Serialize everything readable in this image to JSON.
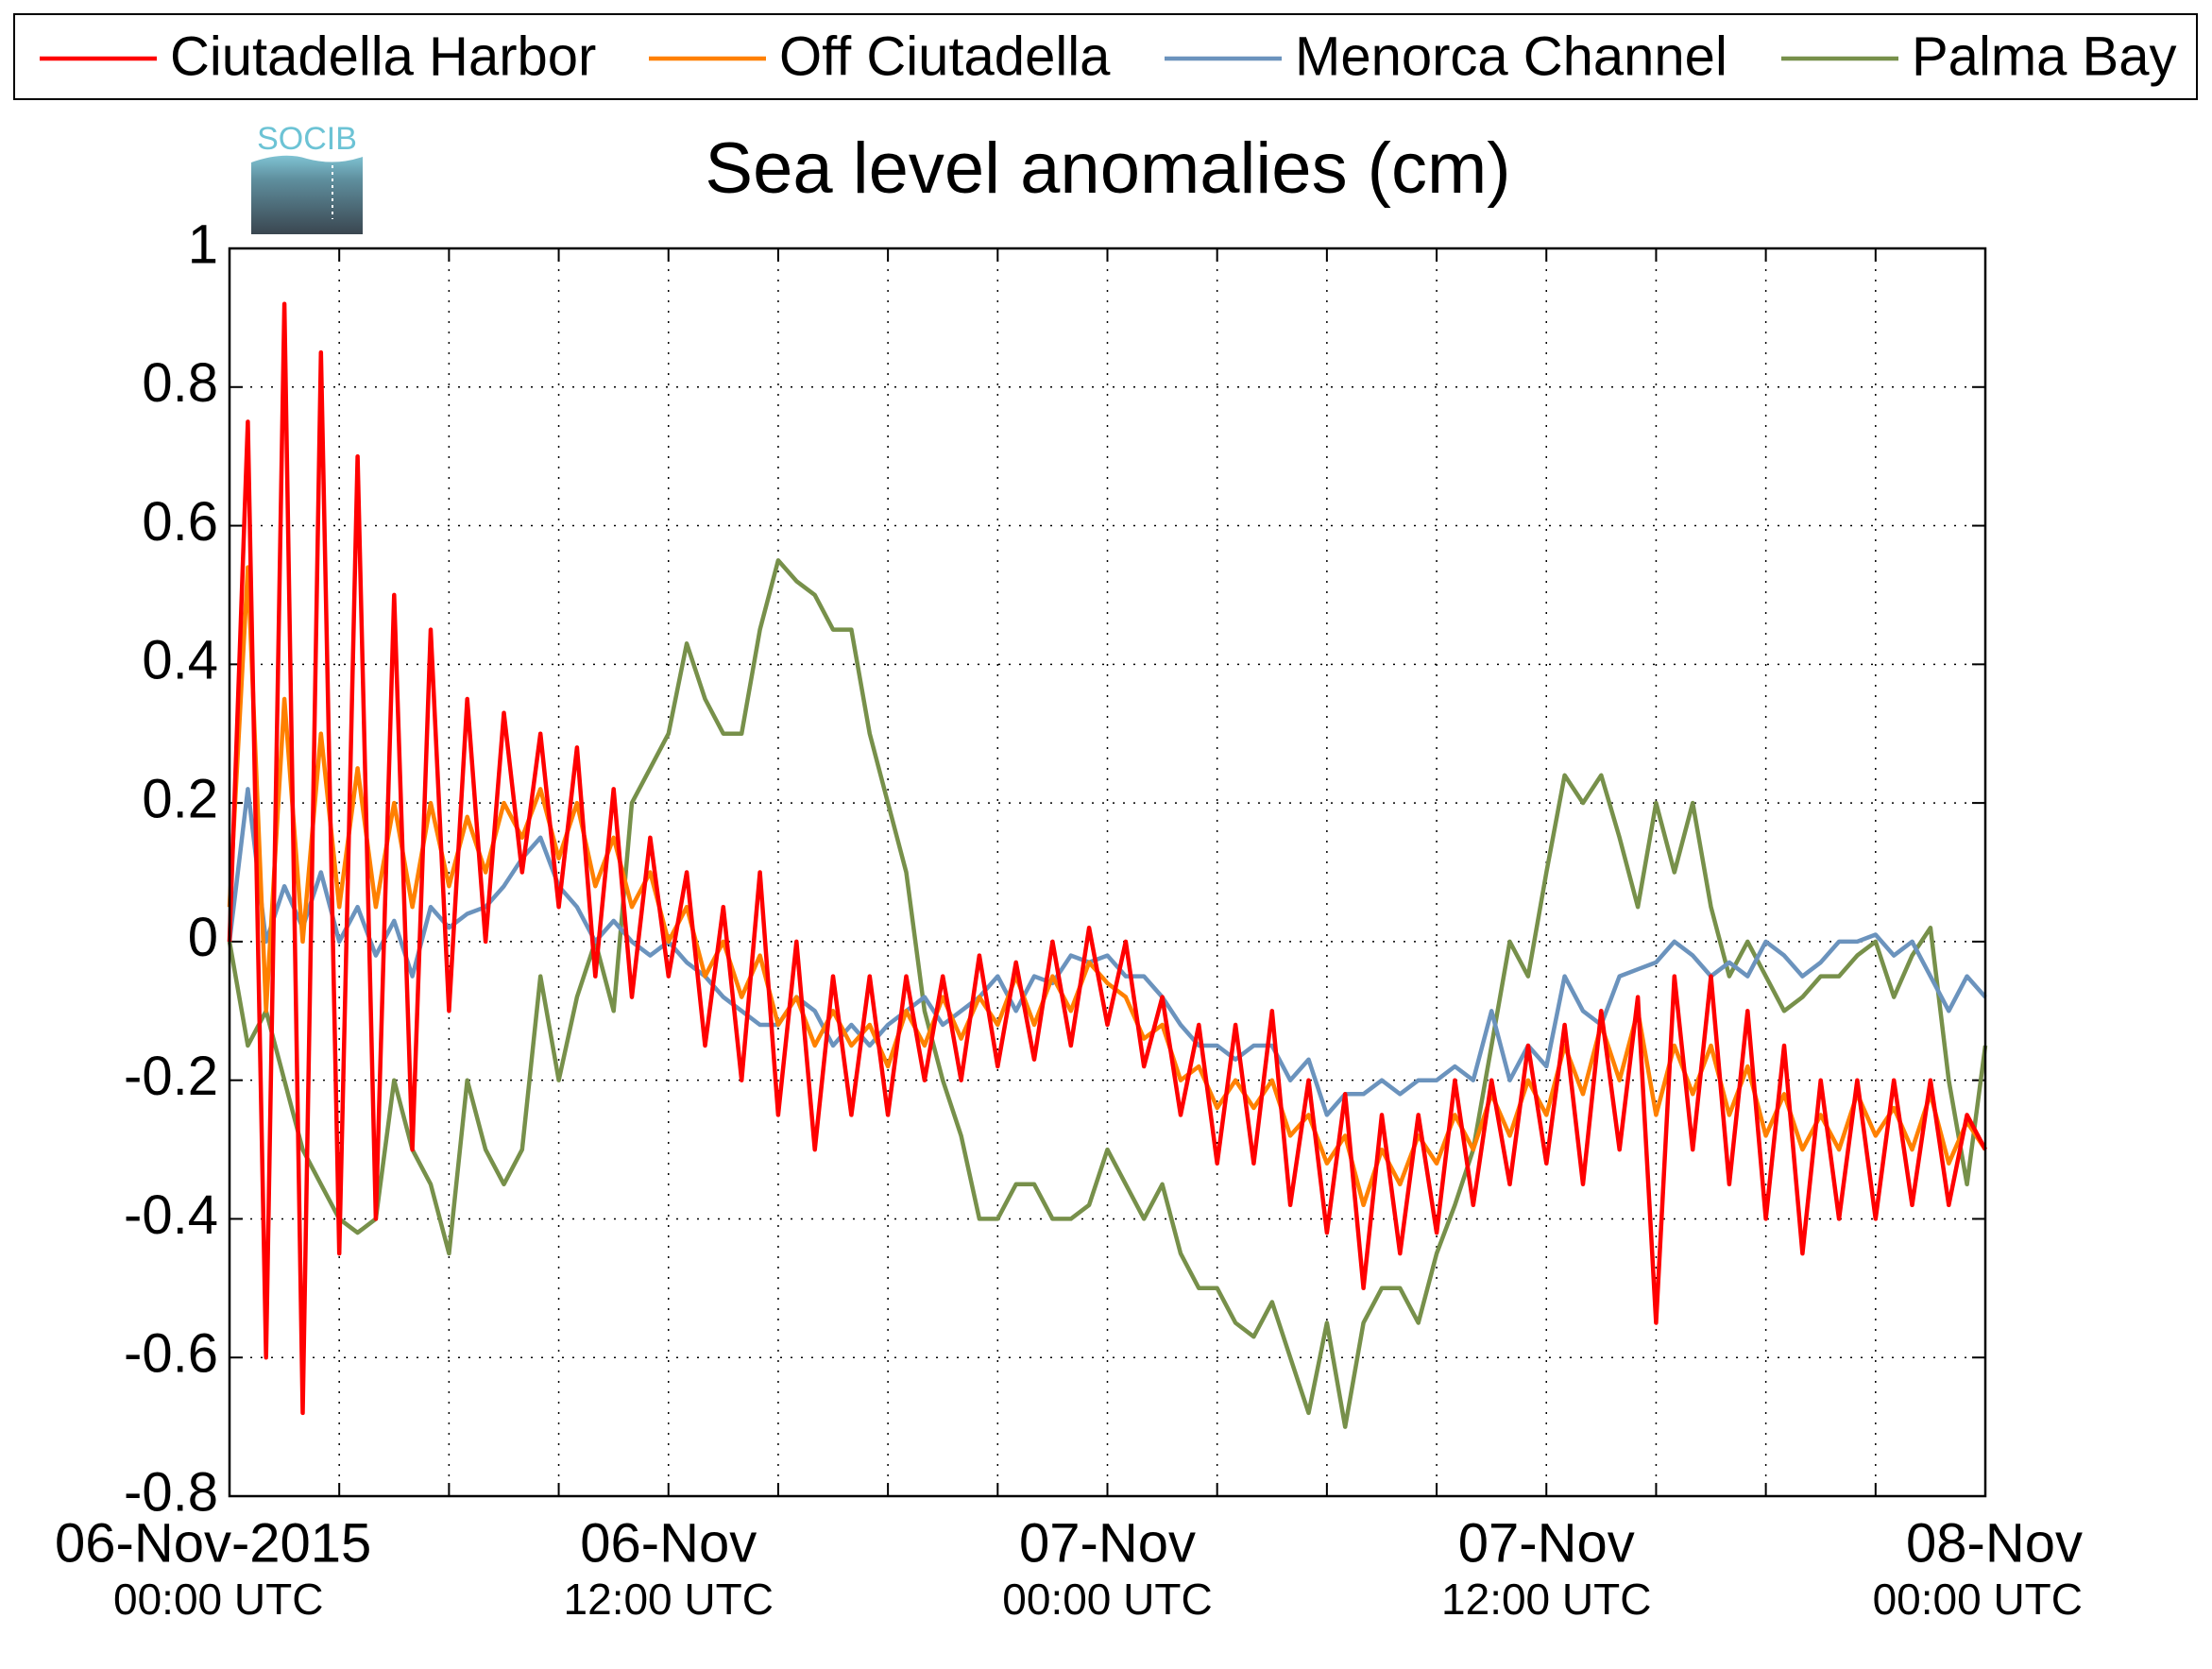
{
  "chart_data": {
    "type": "line",
    "title": "Sea level anomalies (cm)",
    "logo": "SOCIB",
    "x": [
      "2015-11-06T00:00",
      "2015-11-06T00:30",
      "2015-11-06T01:00",
      "2015-11-06T01:30",
      "2015-11-06T02:00",
      "2015-11-06T02:30",
      "2015-11-06T03:00",
      "2015-11-06T03:30",
      "2015-11-06T04:00",
      "2015-11-06T04:30",
      "2015-11-06T05:00",
      "2015-11-06T05:30",
      "2015-11-06T06:00",
      "2015-11-06T06:30",
      "2015-11-06T07:00",
      "2015-11-06T07:30",
      "2015-11-06T08:00",
      "2015-11-06T08:30",
      "2015-11-06T09:00",
      "2015-11-06T09:30",
      "2015-11-06T10:00",
      "2015-11-06T10:30",
      "2015-11-06T11:00",
      "2015-11-06T11:30",
      "2015-11-06T12:00",
      "2015-11-06T12:30",
      "2015-11-06T13:00",
      "2015-11-06T13:30",
      "2015-11-06T14:00",
      "2015-11-06T14:30",
      "2015-11-06T15:00",
      "2015-11-06T15:30",
      "2015-11-06T16:00",
      "2015-11-06T16:30",
      "2015-11-06T17:00",
      "2015-11-06T17:30",
      "2015-11-06T18:00",
      "2015-11-06T18:30",
      "2015-11-06T19:00",
      "2015-11-06T19:30",
      "2015-11-06T20:00",
      "2015-11-06T20:30",
      "2015-11-06T21:00",
      "2015-11-06T21:30",
      "2015-11-06T22:00",
      "2015-11-06T22:30",
      "2015-11-06T23:00",
      "2015-11-06T23:30",
      "2015-11-07T00:00",
      "2015-11-07T00:30",
      "2015-11-07T01:00",
      "2015-11-07T01:30",
      "2015-11-07T02:00",
      "2015-11-07T02:30",
      "2015-11-07T03:00",
      "2015-11-07T03:30",
      "2015-11-07T04:00",
      "2015-11-07T04:30",
      "2015-11-07T05:00",
      "2015-11-07T05:30",
      "2015-11-07T06:00",
      "2015-11-07T06:30",
      "2015-11-07T07:00",
      "2015-11-07T07:30",
      "2015-11-07T08:00",
      "2015-11-07T08:30",
      "2015-11-07T09:00",
      "2015-11-07T09:30",
      "2015-11-07T10:00",
      "2015-11-07T10:30",
      "2015-11-07T11:00",
      "2015-11-07T11:30",
      "2015-11-07T12:00",
      "2015-11-07T12:30",
      "2015-11-07T13:00",
      "2015-11-07T13:30",
      "2015-11-07T14:00",
      "2015-11-07T14:30",
      "2015-11-07T15:00",
      "2015-11-07T15:30",
      "2015-11-07T16:00",
      "2015-11-07T16:30",
      "2015-11-07T17:00",
      "2015-11-07T17:30",
      "2015-11-07T18:00",
      "2015-11-07T18:30",
      "2015-11-07T19:00",
      "2015-11-07T19:30",
      "2015-11-07T20:00",
      "2015-11-07T20:30",
      "2015-11-07T21:00",
      "2015-11-07T21:30",
      "2015-11-07T22:00",
      "2015-11-07T22:30",
      "2015-11-07T23:00",
      "2015-11-07T23:30",
      "2015-11-08T00:00"
    ],
    "series": [
      {
        "name": "Ciutadella Harbor",
        "color": "#ff0000",
        "values": [
          0.0,
          0.75,
          -0.6,
          0.92,
          -0.68,
          0.85,
          -0.45,
          0.7,
          -0.4,
          0.5,
          -0.3,
          0.45,
          -0.1,
          0.35,
          0.0,
          0.33,
          0.1,
          0.3,
          0.05,
          0.28,
          -0.05,
          0.22,
          -0.08,
          0.15,
          -0.05,
          0.1,
          -0.15,
          0.05,
          -0.2,
          0.1,
          -0.25,
          0.0,
          -0.3,
          -0.05,
          -0.25,
          -0.05,
          -0.25,
          -0.05,
          -0.2,
          -0.05,
          -0.2,
          -0.02,
          -0.18,
          -0.03,
          -0.17,
          0.0,
          -0.15,
          0.02,
          -0.12,
          0.0,
          -0.18,
          -0.08,
          -0.25,
          -0.12,
          -0.32,
          -0.12,
          -0.32,
          -0.1,
          -0.38,
          -0.2,
          -0.42,
          -0.22,
          -0.5,
          -0.25,
          -0.45,
          -0.25,
          -0.42,
          -0.2,
          -0.38,
          -0.2,
          -0.35,
          -0.15,
          -0.32,
          -0.12,
          -0.35,
          -0.1,
          -0.3,
          -0.08,
          -0.55,
          -0.05,
          -0.3,
          -0.05,
          -0.35,
          -0.1,
          -0.4,
          -0.15,
          -0.45,
          -0.2,
          -0.4,
          -0.2,
          -0.4,
          -0.2,
          -0.38,
          -0.2,
          -0.38,
          -0.25,
          -0.3
        ]
      },
      {
        "name": "Off Ciutadella",
        "color": "#ff8000",
        "values": [
          0.05,
          0.54,
          -0.1,
          0.35,
          0.0,
          0.3,
          0.05,
          0.25,
          0.05,
          0.2,
          0.05,
          0.2,
          0.08,
          0.18,
          0.1,
          0.2,
          0.15,
          0.22,
          0.12,
          0.2,
          0.08,
          0.15,
          0.05,
          0.1,
          0.0,
          0.05,
          -0.05,
          0.0,
          -0.08,
          -0.02,
          -0.12,
          -0.08,
          -0.15,
          -0.1,
          -0.15,
          -0.12,
          -0.18,
          -0.1,
          -0.15,
          -0.08,
          -0.14,
          -0.08,
          -0.12,
          -0.05,
          -0.12,
          -0.05,
          -0.1,
          -0.03,
          -0.06,
          -0.08,
          -0.14,
          -0.12,
          -0.2,
          -0.18,
          -0.24,
          -0.2,
          -0.24,
          -0.2,
          -0.28,
          -0.25,
          -0.32,
          -0.28,
          -0.38,
          -0.3,
          -0.35,
          -0.28,
          -0.32,
          -0.25,
          -0.3,
          -0.22,
          -0.28,
          -0.2,
          -0.25,
          -0.15,
          -0.22,
          -0.12,
          -0.2,
          -0.1,
          -0.25,
          -0.15,
          -0.22,
          -0.15,
          -0.25,
          -0.18,
          -0.28,
          -0.22,
          -0.3,
          -0.25,
          -0.3,
          -0.22,
          -0.28,
          -0.24,
          -0.3,
          -0.22,
          -0.32,
          -0.26,
          -0.3
        ]
      },
      {
        "name": "Menorca Channel",
        "color": "#6b93bd",
        "values": [
          0.0,
          0.22,
          0.0,
          0.08,
          0.02,
          0.1,
          0.0,
          0.05,
          -0.02,
          0.03,
          -0.05,
          0.05,
          0.02,
          0.04,
          0.05,
          0.08,
          0.12,
          0.15,
          0.08,
          0.05,
          0.0,
          0.03,
          0.0,
          -0.02,
          0.0,
          -0.03,
          -0.05,
          -0.08,
          -0.1,
          -0.12,
          -0.12,
          -0.08,
          -0.1,
          -0.15,
          -0.12,
          -0.15,
          -0.12,
          -0.1,
          -0.08,
          -0.12,
          -0.1,
          -0.08,
          -0.05,
          -0.1,
          -0.05,
          -0.06,
          -0.02,
          -0.03,
          -0.02,
          -0.05,
          -0.05,
          -0.08,
          -0.12,
          -0.15,
          -0.15,
          -0.17,
          -0.15,
          -0.15,
          -0.2,
          -0.17,
          -0.25,
          -0.22,
          -0.22,
          -0.2,
          -0.22,
          -0.2,
          -0.2,
          -0.18,
          -0.2,
          -0.1,
          -0.2,
          -0.15,
          -0.18,
          -0.05,
          -0.1,
          -0.12,
          -0.05,
          -0.04,
          -0.03,
          0.0,
          -0.02,
          -0.05,
          -0.03,
          -0.05,
          0.0,
          -0.02,
          -0.05,
          -0.03,
          0.0,
          0.0,
          0.01,
          -0.02,
          0.0,
          -0.05,
          -0.1,
          -0.05,
          -0.08
        ]
      },
      {
        "name": "Palma Bay",
        "color": "#77904a",
        "values": [
          0.0,
          -0.15,
          -0.1,
          -0.2,
          -0.3,
          -0.35,
          -0.4,
          -0.42,
          -0.4,
          -0.2,
          -0.3,
          -0.35,
          -0.45,
          -0.2,
          -0.3,
          -0.35,
          -0.3,
          -0.05,
          -0.2,
          -0.08,
          0.0,
          -0.1,
          0.2,
          0.25,
          0.3,
          0.43,
          0.35,
          0.3,
          0.3,
          0.45,
          0.55,
          0.52,
          0.5,
          0.45,
          0.45,
          0.3,
          0.2,
          0.1,
          -0.1,
          -0.2,
          -0.28,
          -0.4,
          -0.4,
          -0.35,
          -0.35,
          -0.4,
          -0.4,
          -0.38,
          -0.3,
          -0.35,
          -0.4,
          -0.35,
          -0.45,
          -0.5,
          -0.5,
          -0.55,
          -0.57,
          -0.52,
          -0.6,
          -0.68,
          -0.55,
          -0.7,
          -0.55,
          -0.5,
          -0.5,
          -0.55,
          -0.45,
          -0.38,
          -0.3,
          -0.15,
          0.0,
          -0.05,
          0.1,
          0.24,
          0.2,
          0.24,
          0.15,
          0.05,
          0.2,
          0.1,
          0.2,
          0.05,
          -0.05,
          0.0,
          -0.05,
          -0.1,
          -0.08,
          -0.05,
          -0.05,
          -0.02,
          0.0,
          -0.08,
          -0.02,
          0.02,
          -0.2,
          -0.35,
          -0.15
        ]
      }
    ],
    "xlim": [
      "2015-11-06T00:00",
      "2015-11-08T00:00"
    ],
    "xticks": [
      {
        "value": "2015-11-06T00:00",
        "label": "06-Nov-2015",
        "sublabel": "00:00 UTC"
      },
      "2015-11-06T03:00",
      "2015-11-06T06:00",
      "2015-11-06T09:00",
      {
        "value": "2015-11-06T12:00",
        "label": "06-Nov",
        "sublabel": "12:00 UTC"
      },
      "2015-11-06T15:00",
      "2015-11-06T18:00",
      "2015-11-06T21:00",
      {
        "value": "2015-11-07T00:00",
        "label": "07-Nov",
        "sublabel": "00:00 UTC"
      },
      "2015-11-07T03:00",
      "2015-11-07T06:00",
      "2015-11-07T09:00",
      {
        "value": "2015-11-07T12:00",
        "label": "07-Nov",
        "sublabel": "12:00 UTC"
      },
      "2015-11-07T15:00",
      "2015-11-07T18:00",
      "2015-11-07T21:00",
      {
        "value": "2015-11-08T00:00",
        "label": "08-Nov",
        "sublabel": "00:00 UTC"
      }
    ],
    "ylim": [
      -0.8,
      1
    ],
    "yticks": [
      -0.8,
      -0.6,
      -0.4,
      -0.2,
      0,
      0.2,
      0.4,
      0.6,
      0.8,
      1
    ],
    "grid": true,
    "legend": "top"
  }
}
